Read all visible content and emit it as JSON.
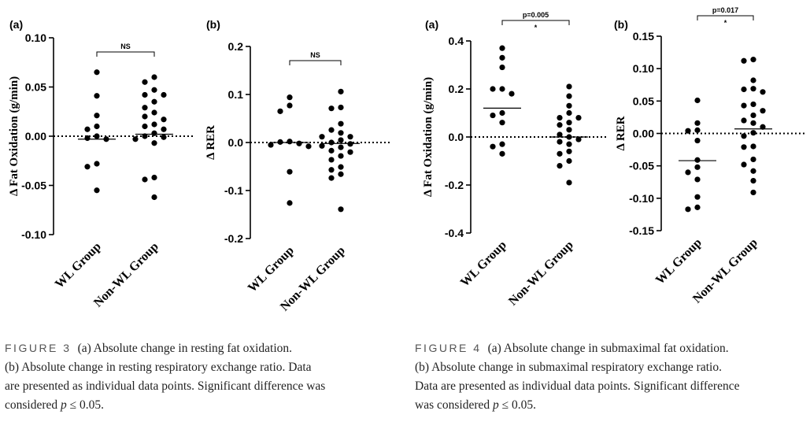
{
  "chart_data": [
    {
      "type": "scatter",
      "panel": "(a)",
      "ylabel": "Δ Fat Oxidation (g/min)",
      "ylim": [
        -0.1,
        0.1
      ],
      "yticks": [
        "0.10",
        "0.05",
        "0.00",
        "-0.05",
        "-0.10"
      ],
      "categories": [
        "WL Group",
        "Non-WL Group"
      ],
      "annotation": "NS",
      "series": [
        {
          "name": "WL Group",
          "mean": -0.003,
          "values": [
            0.065,
            0.041,
            0.021,
            0.01,
            0.007,
            0.0,
            -0.002,
            -0.003,
            -0.028,
            -0.031,
            -0.055
          ]
        },
        {
          "name": "Non-WL Group",
          "mean": 0.002,
          "values": [
            0.06,
            0.055,
            0.047,
            0.042,
            0.042,
            0.035,
            0.029,
            0.024,
            0.02,
            0.017,
            0.012,
            0.01,
            0.007,
            0.003,
            0.0,
            -0.001,
            -0.003,
            -0.007,
            -0.042,
            -0.044,
            -0.062
          ]
        }
      ]
    },
    {
      "type": "scatter",
      "panel": "(b)",
      "ylabel": "Δ RER",
      "ylim": [
        -0.2,
        0.2
      ],
      "yticks": [
        "0.2",
        "0.1",
        "0.0",
        "-0.1",
        "-0.2"
      ],
      "categories": [
        "WL Group",
        "Non-WL Group"
      ],
      "annotation": "NS",
      "series": [
        {
          "name": "WL Group",
          "mean": 0.0,
          "values": [
            0.094,
            0.077,
            0.065,
            0.002,
            0.001,
            -0.002,
            -0.005,
            -0.008,
            -0.061,
            -0.126
          ]
        },
        {
          "name": "Non-WL Group",
          "mean": -0.002,
          "values": [
            0.106,
            0.073,
            0.071,
            0.039,
            0.026,
            0.02,
            0.012,
            0.012,
            0.005,
            0.0,
            -0.003,
            -0.007,
            -0.01,
            -0.017,
            -0.02,
            -0.028,
            -0.036,
            -0.051,
            -0.057,
            -0.066,
            -0.074,
            -0.139
          ]
        }
      ]
    },
    {
      "type": "scatter",
      "panel": "(a)",
      "ylabel": "Δ Fat Oxidation (g/min)",
      "ylim": [
        -0.4,
        0.4
      ],
      "yticks": [
        "0.4",
        "0.2",
        "0.0",
        "-0.2",
        "-0.4"
      ],
      "categories": [
        "WL Group",
        "Non-WL Group"
      ],
      "annotation": "p=0.005",
      "annotation_star": "*",
      "series": [
        {
          "name": "WL Group",
          "mean": 0.12,
          "values": [
            0.37,
            0.33,
            0.29,
            0.2,
            0.2,
            0.18,
            0.1,
            0.09,
            0.06,
            -0.03,
            -0.04,
            -0.07
          ]
        },
        {
          "name": "Non-WL Group",
          "mean": 0.0,
          "values": [
            0.21,
            0.17,
            0.13,
            0.1,
            0.08,
            0.08,
            0.06,
            0.05,
            0.03,
            0.01,
            0.0,
            -0.01,
            -0.02,
            -0.03,
            -0.06,
            -0.07,
            -0.1,
            -0.12,
            -0.19
          ]
        }
      ]
    },
    {
      "type": "scatter",
      "panel": "(b)",
      "ylabel": "Δ RER",
      "ylim": [
        -0.15,
        0.15
      ],
      "yticks": [
        "0.15",
        "0.10",
        "0.05",
        "0.00",
        "-0.05",
        "-0.10",
        "-0.15"
      ],
      "categories": [
        "WL Group",
        "Non-WL Group"
      ],
      "annotation": "p=0.017",
      "annotation_star": "*",
      "series": [
        {
          "name": "WL Group",
          "mean": -0.042,
          "values": [
            0.051,
            0.016,
            0.005,
            0.004,
            -0.011,
            -0.041,
            -0.052,
            -0.06,
            -0.071,
            -0.098,
            -0.114,
            -0.117
          ]
        },
        {
          "name": "Non-WL Group",
          "mean": 0.007,
          "values": [
            0.114,
            0.112,
            0.082,
            0.069,
            0.068,
            0.064,
            0.045,
            0.043,
            0.035,
            0.028,
            0.02,
            0.016,
            0.01,
            0.001,
            -0.004,
            -0.02,
            -0.021,
            -0.04,
            -0.048,
            -0.058,
            -0.073,
            -0.091
          ]
        }
      ]
    }
  ],
  "captions": {
    "fig3": {
      "label": "FIGURE 3",
      "line1": "(a) Absolute change in resting fat oxidation.",
      "line2": "(b) Absolute change in resting respiratory exchange ratio. Data",
      "line3": "are presented as individual data points. Significant difference was",
      "line4_pre": "considered ",
      "line4_p": "p",
      "line4_post": " ≤ 0.05."
    },
    "fig4": {
      "label": "FIGURE 4",
      "line1": "(a) Absolute change in submaximal fat oxidation.",
      "line2": "(b) Absolute change in submaximal respiratory exchange ratio.",
      "line3": "Data are presented as individual data points. Significant difference",
      "line4_pre": "was considered ",
      "line4_p": "p",
      "line4_post": " ≤ 0.05."
    }
  }
}
